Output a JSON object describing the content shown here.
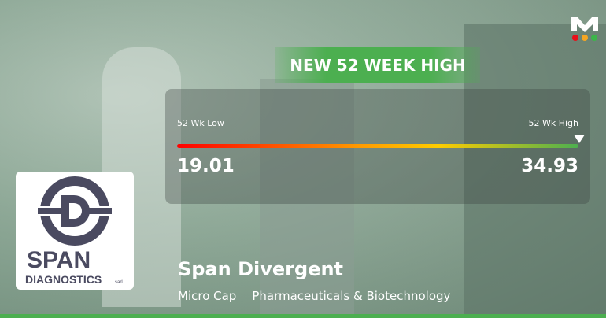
{
  "banner": {
    "title": "NEW 52 WEEK HIGH"
  },
  "range": {
    "low_label": "52 Wk Low",
    "high_label": "52 Wk High",
    "low": "19.01",
    "high": "34.93",
    "current_position_percent": 100
  },
  "company": {
    "name": "Span Divergent",
    "cap": "Micro Cap",
    "sector": "Pharmaceuticals & Biotechnology",
    "logo_text": "SPAN DIAGNOSTICS sarl"
  },
  "brand": {
    "logo_letter": "M",
    "dot_colors": [
      "#e8101a",
      "#f5a623",
      "#3cb54a"
    ],
    "accent": "#4caf50"
  }
}
